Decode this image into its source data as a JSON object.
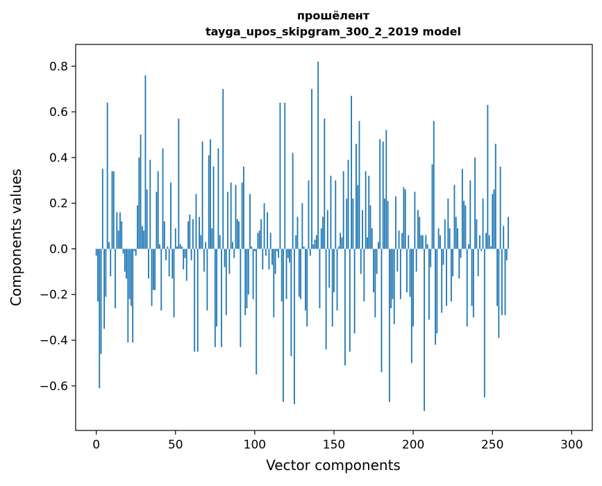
{
  "chart_data": {
    "type": "bar",
    "title_line1": "прошёлент",
    "title_line2": "tayga_upos_skipgram_300_2_2019 model",
    "xlabel": "Vector components",
    "ylabel": "Components values",
    "xlim": [
      -13,
      313
    ],
    "ylim": [
      -0.795,
      0.895
    ],
    "xticks": [
      0,
      50,
      100,
      150,
      200,
      250,
      300
    ],
    "yticks": [
      -0.6,
      -0.4,
      -0.2,
      0.0,
      0.2,
      0.4,
      0.6,
      0.8
    ],
    "ytick_labels": [
      "−0.6",
      "−0.4",
      "−0.2",
      "0.0",
      "0.2",
      "0.4",
      "0.6",
      "0.8"
    ],
    "xtick_labels": [
      "0",
      "50",
      "100",
      "150",
      "200",
      "250",
      "300"
    ],
    "bar_color": "#1f77b4",
    "grid": false,
    "values": [
      -0.03,
      -0.23,
      -0.61,
      -0.46,
      0.35,
      -0.35,
      -0.21,
      0.64,
      0.03,
      -0.12,
      0.34,
      0.34,
      -0.26,
      0.16,
      0.08,
      0.16,
      0.12,
      -0.02,
      -0.1,
      -0.13,
      -0.41,
      -0.22,
      -0.25,
      -0.41,
      -0.01,
      -0.03,
      0.19,
      0.4,
      0.5,
      0.1,
      0.08,
      0.76,
      0.26,
      -0.13,
      0.39,
      -0.25,
      -0.18,
      -0.18,
      0.25,
      0.34,
      0.02,
      -0.27,
      0.44,
      0.12,
      -0.05,
      0.01,
      -0.12,
      0.29,
      -0.13,
      -0.3,
      0.09,
      0.01,
      0.57,
      0.02,
      0.01,
      -0.09,
      -0.04,
      -0.14,
      0.12,
      0.15,
      -0.05,
      0.13,
      -0.45,
      0.24,
      -0.45,
      0.14,
      0.06,
      0.47,
      -0.1,
      0.03,
      -0.27,
      0.41,
      0.48,
      0.09,
      0.36,
      -0.43,
      -0.34,
      0.44,
      0.06,
      -0.43,
      0.7,
      -0.08,
      -0.29,
      0.25,
      -0.11,
      0.29,
      0.03,
      -0.04,
      0.28,
      0.13,
      0.12,
      -0.43,
      0.29,
      0.36,
      -0.29,
      -0.26,
      -0.2,
      0.24,
      0.01,
      -0.22,
      -0.01,
      -0.55,
      0.07,
      0.08,
      0.13,
      -0.09,
      0.2,
      -0.03,
      0.16,
      -0.09,
      0.07,
      -0.07,
      -0.3,
      -0.11,
      -0.01,
      -0.04,
      0.64,
      -0.23,
      -0.67,
      0.64,
      -0.22,
      -0.04,
      -0.06,
      -0.47,
      0.42,
      -0.68,
      0.06,
      0.14,
      -0.21,
      -0.22,
      0.2,
      0.01,
      -0.27,
      -0.34,
      0.3,
      -0.03,
      0.7,
      0.02,
      0.04,
      0.06,
      0.82,
      -0.26,
      0.09,
      0.14,
      0.57,
      -0.44,
      0.17,
      -0.17,
      0.32,
      -0.34,
      -0.19,
      0.3,
      -0.27,
      0.01,
      0.07,
      0.05,
      0.34,
      -0.51,
      0.22,
      0.39,
      -0.45,
      0.67,
      0.22,
      -0.37,
      0.46,
      0.28,
      0.56,
      -0.11,
      0.17,
      -0.23,
      0.34,
      0.05,
      0.32,
      0.19,
      0.09,
      -0.19,
      -0.3,
      -0.11,
      0.03,
      0.48,
      -0.54,
      0.47,
      0.22,
      0.52,
      0.21,
      -0.67,
      -0.26,
      -0.22,
      -0.33,
      0.23,
      -0.1,
      0.08,
      -0.22,
      0.07,
      0.27,
      0.26,
      -0.19,
      0.06,
      -0.21,
      -0.5,
      -0.34,
      0.25,
      -0.1,
      0.17,
      0.14,
      0.06,
      0.06,
      -0.71,
      0.06,
      0.02,
      -0.31,
      -0.08,
      0.37,
      0.56,
      -0.42,
      -0.37,
      0.09,
      0.06,
      -0.28,
      -0.07,
      0.13,
      -0.25,
      0.22,
      0.09,
      -0.23,
      -0.12,
      0.28,
      0.14,
      0.09,
      -0.13,
      -0.04,
      0.35,
      0.21,
      0.19,
      -0.34,
      0.02,
      0.3,
      -0.25,
      -0.3,
      0.4,
      0.13,
      -0.12,
      0.06,
      -0.01,
      0.22,
      -0.65,
      0.07,
      0.63,
      0.06,
      0.01,
      0.24,
      0.26,
      0.46,
      -0.25,
      -0.39,
      0.36,
      -0.29,
      0.1,
      -0.29,
      -0.05,
      0.14
    ]
  }
}
